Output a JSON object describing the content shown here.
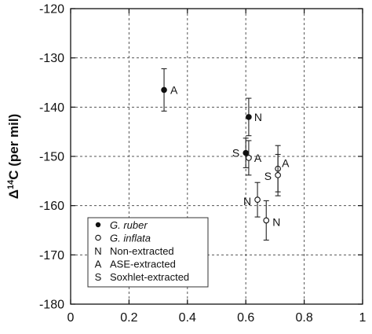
{
  "chart_data": {
    "type": "scatter",
    "title": "",
    "xlabel": "",
    "ylabel": {
      "prefix": "Δ",
      "superscript": "14",
      "suffix": "C (per mil)"
    },
    "xlim": [
      0,
      1
    ],
    "ylim": [
      -180,
      -120
    ],
    "x_ticks": [
      0,
      0.2,
      0.4,
      0.6,
      0.8,
      1
    ],
    "x_tick_labels": [
      "0",
      "0.2",
      "0.4",
      "0.6",
      "0.8",
      "1"
    ],
    "y_ticks": [
      -180,
      -170,
      -160,
      -150,
      -140,
      -130,
      -120
    ],
    "y_tick_labels": [
      "-180",
      "-170",
      "-160",
      "-150",
      "-140",
      "-130",
      "-120"
    ],
    "grid": true,
    "legend_placement": "bottom-left",
    "series": [
      {
        "name": "G. ruber",
        "marker": "filled-circle",
        "points": [
          {
            "x": 0.32,
            "y": -136.5,
            "err": 4.3,
            "label": "A"
          },
          {
            "x": 0.61,
            "y": -142.0,
            "err": 3.8,
            "label": "N"
          },
          {
            "x": 0.6,
            "y": -149.3,
            "err": 3.0,
            "label": "S"
          }
        ]
      },
      {
        "name": "G. inflata",
        "marker": "open-circle",
        "points": [
          {
            "x": 0.61,
            "y": -150.3,
            "err": 3.5,
            "label": "A"
          },
          {
            "x": 0.71,
            "y": -152.5,
            "err": 4.7,
            "label": "A"
          },
          {
            "x": 0.71,
            "y": -153.8,
            "err": 4.2,
            "label": "S"
          },
          {
            "x": 0.64,
            "y": -158.8,
            "err": 3.5,
            "label": "N"
          },
          {
            "x": 0.67,
            "y": -163.0,
            "err": 4.0,
            "label": "N"
          }
        ]
      }
    ],
    "legend": {
      "markers": [
        {
          "symbol": "filled-circle",
          "text": "G. ruber"
        },
        {
          "symbol": "open-circle",
          "text": "G. inflata"
        }
      ],
      "codes": [
        {
          "code": "N",
          "text": "Non-extracted"
        },
        {
          "code": "A",
          "text": "ASE-extracted"
        },
        {
          "code": "S",
          "text": "Soxhlet-extracted"
        }
      ]
    }
  }
}
